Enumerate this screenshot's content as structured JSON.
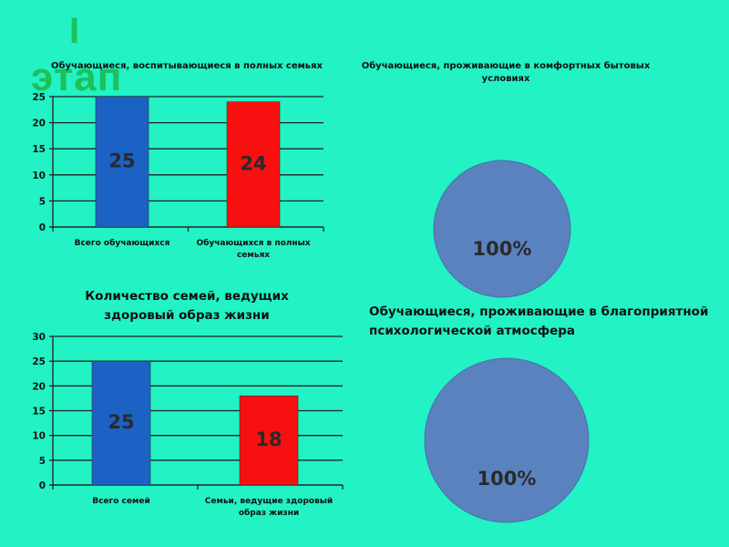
{
  "stage": {
    "roman": "I",
    "word": "этап"
  },
  "colors": {
    "background": "#22f2c4",
    "blue_bar": "#1b62c4",
    "red_bar": "#f80f0f",
    "pie_fill": "#5a82bf",
    "stage_text": "#1ec05a"
  },
  "chart_data": [
    {
      "id": "chart1",
      "type": "bar",
      "title": "Обучающиеся, воспитывающиеся в полных семьях",
      "categories": [
        "Всего обучающихся",
        "Обучающихся в полных семьях"
      ],
      "values": [
        25,
        24
      ],
      "colors": [
        "#1b62c4",
        "#f80f0f"
      ],
      "ylim": [
        0,
        25
      ],
      "yticks": [
        0,
        5,
        10,
        15,
        20,
        25
      ],
      "grid": true
    },
    {
      "id": "chart2",
      "type": "pie",
      "title": "Обучающиеся, проживающие в комфортных бытовых условиях",
      "labels": [
        "100%"
      ],
      "values": [
        100
      ],
      "colors": [
        "#5a82bf"
      ]
    },
    {
      "id": "chart3",
      "type": "bar",
      "title": "Количество семей, ведущих здоровый образ жизни",
      "categories": [
        "Всего семей",
        "Семьи, ведущие здоровый образ жизни"
      ],
      "values": [
        25,
        18
      ],
      "colors": [
        "#1b62c4",
        "#f80f0f"
      ],
      "ylim": [
        0,
        30
      ],
      "yticks": [
        0,
        5,
        10,
        15,
        20,
        25,
        30
      ],
      "grid": true
    },
    {
      "id": "chart4",
      "type": "pie",
      "title": "Обучающиеся, проживающие в благоприятной психологической атмосфера",
      "labels": [
        "100%"
      ],
      "values": [
        100
      ],
      "colors": [
        "#5a82bf"
      ]
    }
  ]
}
